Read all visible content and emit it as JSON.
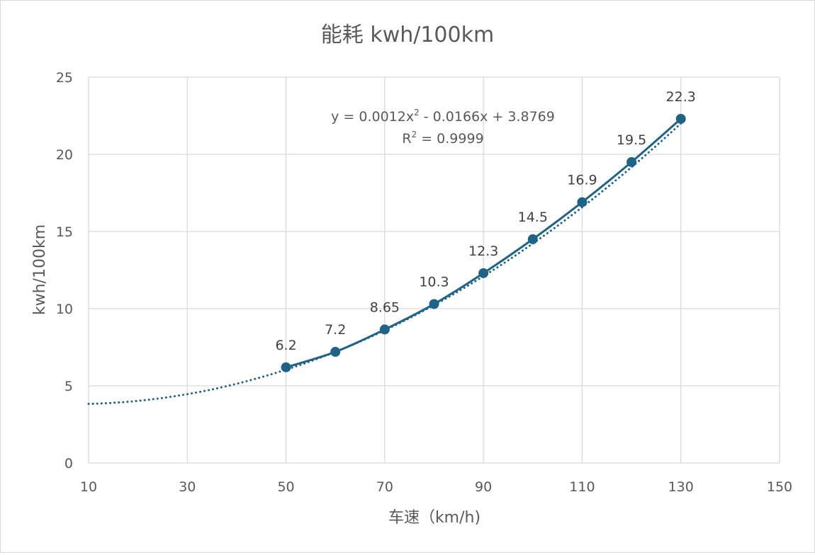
{
  "chart_data": {
    "type": "scatter",
    "title": "能耗 kwh/100km",
    "xlabel": "车速（km/h)",
    "ylabel": "kwh/100km",
    "xlim": [
      10,
      150
    ],
    "ylim": [
      0,
      25
    ],
    "x_ticks": [
      "10",
      "30",
      "50",
      "70",
      "90",
      "110",
      "130",
      "150"
    ],
    "y_ticks": [
      "0",
      "5",
      "10",
      "15",
      "20",
      "25"
    ],
    "grid": true,
    "series": [
      {
        "x": [
          50,
          60,
          70,
          80,
          90,
          100,
          110,
          120,
          130
        ],
        "y": [
          6.2,
          7.2,
          8.65,
          10.3,
          12.3,
          14.5,
          16.9,
          19.5,
          22.3
        ],
        "labels": [
          "6.2",
          "7.2",
          "8.65",
          "10.3",
          "12.3",
          "14.5",
          "16.9",
          "19.5",
          "22.3"
        ]
      }
    ],
    "trendline": {
      "type": "polynomial-2",
      "coefficients": [
        0.0012,
        -0.0166,
        3.8769
      ],
      "x_range": [
        10,
        130
      ],
      "style": "dotted",
      "equation_text": "y = 0.0012x",
      "equation_sup": "2",
      "equation_rest": " - 0.0166x + 3.8769",
      "r2_prefix": "R",
      "r2_sup": "2",
      "r2_rest": " = 0.9999"
    },
    "colors": {
      "series": "#1f6386",
      "grid": "#d9d9d9",
      "text": "#595959",
      "label": "#404040"
    }
  }
}
